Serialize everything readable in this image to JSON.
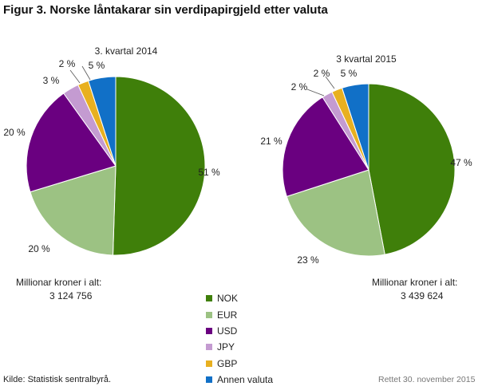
{
  "title": "Figur 3. Norske låntakarar sin verdipapirgjeld etter valuta",
  "source": "Kilde: Statistisk sentralbyrå.",
  "updated": "Rettet 30. november 2015",
  "chart_data": [
    {
      "type": "pie",
      "title": "3. kvartal 2014",
      "categories": [
        "NOK",
        "EUR",
        "USD",
        "JPY",
        "GBP",
        "Annen valuta"
      ],
      "values": [
        51,
        20,
        20,
        3,
        2,
        5
      ],
      "labels": [
        "51 %",
        "20 %",
        "20 %",
        "3 %",
        "2 %",
        "5 %"
      ],
      "total_label": "Millionar kroner i alt:",
      "total_value": "3 124 756"
    },
    {
      "type": "pie",
      "title": "3 kvartal 2015",
      "categories": [
        "NOK",
        "EUR",
        "USD",
        "JPY",
        "GBP",
        "Annen valuta"
      ],
      "values": [
        47,
        23,
        21,
        2,
        2,
        5
      ],
      "labels": [
        "47 %",
        "23 %",
        "21 %",
        "2 %",
        "2 %",
        "5 %"
      ],
      "total_label": "Millionar kroner i alt:",
      "total_value": "3 439 624"
    }
  ],
  "legend": {
    "position": "bottom-center",
    "items": [
      {
        "label": "NOK",
        "color": "#3f7f0a"
      },
      {
        "label": "EUR",
        "color": "#9cc283"
      },
      {
        "label": "USD",
        "color": "#6a0080"
      },
      {
        "label": "JPY",
        "color": "#c49bd1"
      },
      {
        "label": "GBP",
        "color": "#e8b020"
      },
      {
        "label": "Annen valuta",
        "color": "#1170c7"
      }
    ]
  }
}
